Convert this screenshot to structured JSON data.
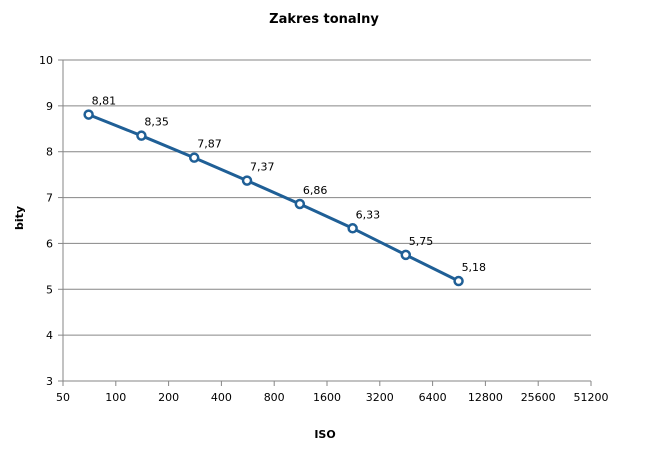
{
  "chart_data": {
    "type": "line",
    "title": "Zakres tonalny",
    "xlabel": "ISO",
    "ylabel": "bity",
    "x_scale": "log2",
    "x_ticks": [
      "50",
      "100",
      "200",
      "400",
      "800",
      "1600",
      "3200",
      "6400",
      "12800",
      "25600",
      "51200"
    ],
    "y_ticks": [
      "3",
      "4",
      "5",
      "6",
      "7",
      "8",
      "9",
      "10"
    ],
    "ylim": [
      3,
      10
    ],
    "xlim": [
      50,
      51200
    ],
    "grid": "horizontal",
    "legend": "none",
    "series": [
      {
        "color": "#1f5f96",
        "x": [
          70,
          140,
          280,
          560,
          1120,
          2240,
          4500,
          9000
        ],
        "values": [
          8.81,
          8.35,
          7.87,
          7.37,
          6.86,
          6.33,
          5.75,
          5.18
        ],
        "data_labels": [
          "8,81",
          "8,35",
          "7,87",
          "7,37",
          "6,86",
          "6,33",
          "5,75",
          "5,18"
        ]
      }
    ]
  }
}
